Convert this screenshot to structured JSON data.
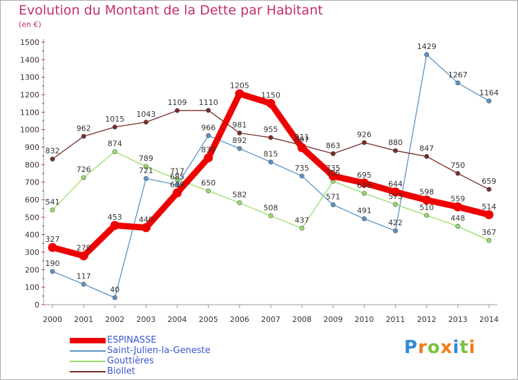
{
  "header": {
    "title": "Evolution du Montant de la Dette par Habitant",
    "subtitle": "(en €)"
  },
  "logo": {
    "text": "Proxiti",
    "letters": [
      {
        "ch": "P",
        "color": "#2f8ad8"
      },
      {
        "ch": "r",
        "color": "#f07d1a"
      },
      {
        "ch": "o",
        "color": "#7ac142"
      },
      {
        "ch": "x",
        "color": "#f07d1a"
      },
      {
        "ch": "i",
        "color": "#2f8ad8"
      },
      {
        "ch": "t",
        "color": "#7ac142"
      },
      {
        "ch": "i",
        "color": "#f07d1a"
      }
    ]
  },
  "chart_data": {
    "type": "line",
    "title": "Evolution du Montant de la Dette par Habitant",
    "ylabel": "(en €)",
    "xlabel": "",
    "x": [
      "2000",
      "2001",
      "2002",
      "2003",
      "2004",
      "2005",
      "2006",
      "2007",
      "2008",
      "2009",
      "2010",
      "2011",
      "2012",
      "2013",
      "2014"
    ],
    "ylim": [
      0,
      1500
    ],
    "yticks": [
      "0",
      "100",
      "200",
      "300",
      "400",
      "500",
      "600",
      "700",
      "800",
      "900",
      "1000",
      "1100",
      "1200",
      "1300",
      "1400",
      "1500"
    ],
    "grid": false,
    "legend_position": "bottom-left",
    "series": [
      {
        "name": "ESPINASSE",
        "color": "#ee0000",
        "bold": true,
        "values": [
          327,
          279,
          453,
          440,
          639,
          839,
          1205,
          1150,
          897,
          735,
          695,
          644,
          598,
          559,
          514
        ],
        "labels": [
          "327",
          "279",
          "453",
          "440",
          "639",
          "839",
          "1205",
          "1150",
          "897",
          "735",
          "695",
          "644",
          "598",
          "559",
          "514"
        ]
      },
      {
        "name": "Saint-Julien-la-Geneste",
        "color": "#5b93c7",
        "bold": false,
        "values": [
          190,
          117,
          40,
          721,
          685,
          966,
          892,
          815,
          735,
          571,
          491,
          422,
          1429,
          1267,
          1164
        ],
        "labels": [
          "190",
          "117",
          "40",
          "721",
          "685",
          "966",
          "892",
          "815",
          "735",
          "571",
          "491",
          "422",
          "1429",
          "1267",
          "1164"
        ]
      },
      {
        "name": "Gouttières",
        "color": "#99dd66",
        "bold": false,
        "values": [
          541,
          726,
          874,
          789,
          717,
          650,
          582,
          508,
          437,
          705,
          636,
          573,
          510,
          448,
          367
        ],
        "labels": [
          "541",
          "726",
          "874",
          "789",
          "717",
          "650",
          "582",
          "508",
          "437",
          "705",
          "636",
          "573",
          "510",
          "448",
          "367"
        ]
      },
      {
        "name": "Biollet",
        "color": "#7a2a2a",
        "bold": false,
        "values": [
          832,
          962,
          1015,
          1043,
          1109,
          1110,
          981,
          955,
          911,
          863,
          926,
          880,
          847,
          750,
          659
        ],
        "labels": [
          "832",
          "962",
          "1015",
          "1043",
          "1109",
          "1110",
          "981",
          "955",
          "911",
          "863",
          "926",
          "880",
          "847",
          "750",
          "659"
        ]
      }
    ]
  }
}
